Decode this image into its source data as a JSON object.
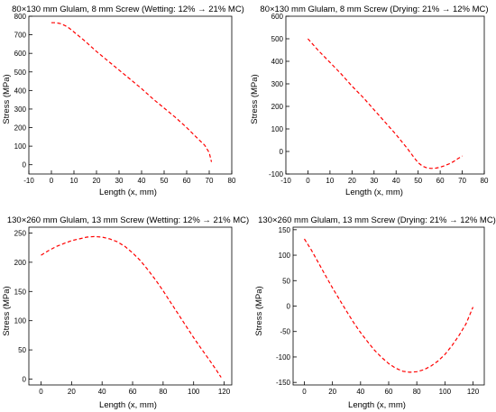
{
  "colors": {
    "series": "#ff0000",
    "axes": "#000000",
    "background": "#ffffff"
  },
  "chart_data": [
    {
      "type": "line",
      "title": "80×130 mm Glulam, 8 mm Screw (Wetting: 12% → 21% MC)",
      "xlabel": "Length (x, mm)",
      "ylabel": "Stress (MPa)",
      "xlim": [
        -10,
        80
      ],
      "ylim": [
        -50,
        800
      ],
      "xticks": [
        -10,
        0,
        10,
        20,
        30,
        40,
        50,
        60,
        70,
        80
      ],
      "yticks": [
        0,
        100,
        200,
        300,
        400,
        500,
        600,
        700,
        800
      ],
      "grid": false,
      "legend": "none",
      "series": [
        {
          "style": "dashed",
          "color": "#ff0000",
          "x": [
            0,
            2,
            4,
            6,
            8,
            10,
            15,
            20,
            25,
            30,
            35,
            40,
            45,
            50,
            55,
            60,
            65,
            68,
            70,
            71
          ],
          "y": [
            765,
            765,
            760,
            750,
            735,
            715,
            665,
            610,
            560,
            510,
            460,
            410,
            355,
            305,
            255,
            200,
            140,
            105,
            65,
            15
          ]
        }
      ]
    },
    {
      "type": "line",
      "title": "80×130 mm Glulam, 8 mm Screw (Drying: 21% → 12% MC)",
      "xlabel": "Length (x, mm)",
      "ylabel": "Stress (MPa)",
      "xlim": [
        -10,
        80
      ],
      "ylim": [
        -100,
        600
      ],
      "xticks": [
        -10,
        0,
        10,
        20,
        30,
        40,
        50,
        60,
        70,
        80
      ],
      "yticks": [
        -100,
        0,
        100,
        200,
        300,
        400,
        500,
        600
      ],
      "grid": false,
      "legend": "none",
      "series": [
        {
          "style": "dashed",
          "color": "#ff0000",
          "x": [
            0,
            5,
            10,
            15,
            20,
            25,
            30,
            35,
            40,
            45,
            48,
            50,
            52,
            54,
            56,
            58,
            60,
            62,
            64,
            66,
            68,
            70
          ],
          "y": [
            500,
            445,
            395,
            345,
            290,
            240,
            185,
            130,
            75,
            15,
            -25,
            -50,
            -65,
            -73,
            -75,
            -74,
            -70,
            -63,
            -55,
            -45,
            -32,
            -20
          ]
        }
      ]
    },
    {
      "type": "line",
      "title": "130×260 mm Glulam, 13 mm Screw (Wetting: 12% → 21% MC)",
      "xlabel": "Length (x, mm)",
      "ylabel": "Stress (MPa)",
      "xlim": [
        -8,
        125
      ],
      "ylim": [
        -10,
        260
      ],
      "xticks": [
        0,
        20,
        40,
        60,
        80,
        100,
        120
      ],
      "yticks": [
        0,
        50,
        100,
        150,
        200,
        250
      ],
      "grid": false,
      "legend": "none",
      "series": [
        {
          "style": "dashed",
          "color": "#ff0000",
          "x": [
            0,
            5,
            10,
            15,
            20,
            25,
            30,
            35,
            40,
            45,
            50,
            55,
            60,
            65,
            70,
            75,
            80,
            85,
            90,
            95,
            100,
            105,
            110,
            115,
            118
          ],
          "y": [
            212,
            220,
            227,
            232,
            237,
            240,
            243,
            244,
            243,
            240,
            235,
            227,
            216,
            203,
            187,
            170,
            151,
            131,
            111,
            91,
            71,
            52,
            34,
            15,
            3
          ]
        }
      ]
    },
    {
      "type": "line",
      "title": "130×260 mm Glulam, 13 mm Screw (Drying: 21% → 12% MC)",
      "xlabel": "Length (x, mm)",
      "ylabel": "Stress (MPa)",
      "xlim": [
        -8,
        128
      ],
      "ylim": [
        -155,
        155
      ],
      "xticks": [
        0,
        20,
        40,
        60,
        80,
        100,
        120
      ],
      "yticks": [
        -150,
        -100,
        -50,
        0,
        50,
        100,
        150
      ],
      "grid": false,
      "legend": "none",
      "series": [
        {
          "style": "dashed",
          "color": "#ff0000",
          "x": [
            0,
            5,
            10,
            15,
            20,
            25,
            30,
            35,
            40,
            45,
            50,
            55,
            60,
            65,
            70,
            75,
            80,
            85,
            90,
            95,
            100,
            105,
            110,
            115,
            120
          ],
          "y": [
            132,
            110,
            85,
            60,
            36,
            13,
            -10,
            -32,
            -52,
            -70,
            -87,
            -101,
            -113,
            -122,
            -128,
            -130,
            -129,
            -125,
            -118,
            -108,
            -95,
            -78,
            -58,
            -35,
            -2
          ]
        }
      ]
    }
  ]
}
